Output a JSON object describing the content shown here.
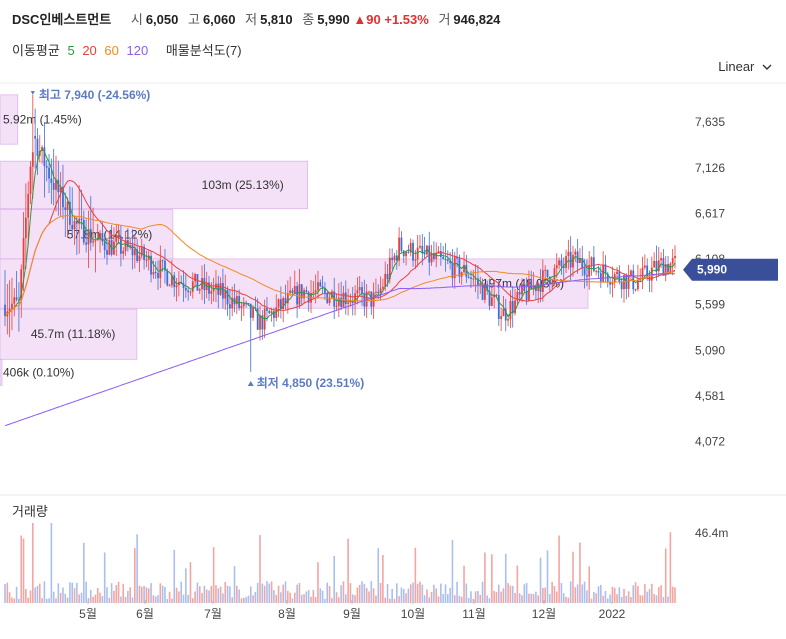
{
  "header": {
    "name": "DSC인베스트먼트",
    "open_label": "시",
    "open": "6,050",
    "high_label": "고",
    "high": "6,060",
    "low_label": "저",
    "low": "5,810",
    "close_label": "종",
    "close": "5,990",
    "change": "▲90",
    "change_pct": "+1.53%",
    "volume_label": "거",
    "volume": "946,824"
  },
  "ma_legend": {
    "label": "이동평균",
    "periods": [
      {
        "p": "5",
        "color": "#2b9a3e"
      },
      {
        "p": "20",
        "color": "#e8413b"
      },
      {
        "p": "60",
        "color": "#f08a24"
      },
      {
        "p": "120",
        "color": "#8b5cf6"
      }
    ],
    "analysis": "매물분석도(7)"
  },
  "scale_select": "Linear",
  "volume_title": "거래량",
  "colors": {
    "up": "#e8413b",
    "down": "#3b6fd8",
    "band": "#f3dcf7",
    "band_edge": "#d9a9e6",
    "price_tag": "#3a4f9a"
  },
  "chart_data": {
    "type": "candlestick",
    "price_axis": {
      "ticks": [
        "7,635",
        "7,126",
        "6,617",
        "6,108",
        "5,599",
        "5,090",
        "4,581",
        "4,072"
      ],
      "range": [
        3700,
        8050
      ]
    },
    "volume_axis": {
      "tick": "46.4m"
    },
    "x_ticks": [
      "5월",
      "6월",
      "7월",
      "8월",
      "9월",
      "10월",
      "11월",
      "12월",
      "2022"
    ],
    "current_price": "5,990",
    "annotations": {
      "high": "최고 7,940 (-24.56%)",
      "low": "최저 4,850 (23.51%)"
    },
    "volume_profile": [
      {
        "label": "5.92m (1.45%)",
        "lo": 7390,
        "hi": 7940
      },
      {
        "label": "103m (25.13%)",
        "lo": 6670,
        "hi": 7200
      },
      {
        "label": "57.8m (14.12%)",
        "lo": 6110,
        "hi": 6660
      },
      {
        "label": "197m (48.03%)",
        "lo": 5560,
        "hi": 6110
      },
      {
        "label": "45.7m (11.18%)",
        "lo": 4990,
        "hi": 5550
      },
      {
        "label": "406k (0.10%)",
        "lo": 4700,
        "hi": 4990
      }
    ]
  }
}
